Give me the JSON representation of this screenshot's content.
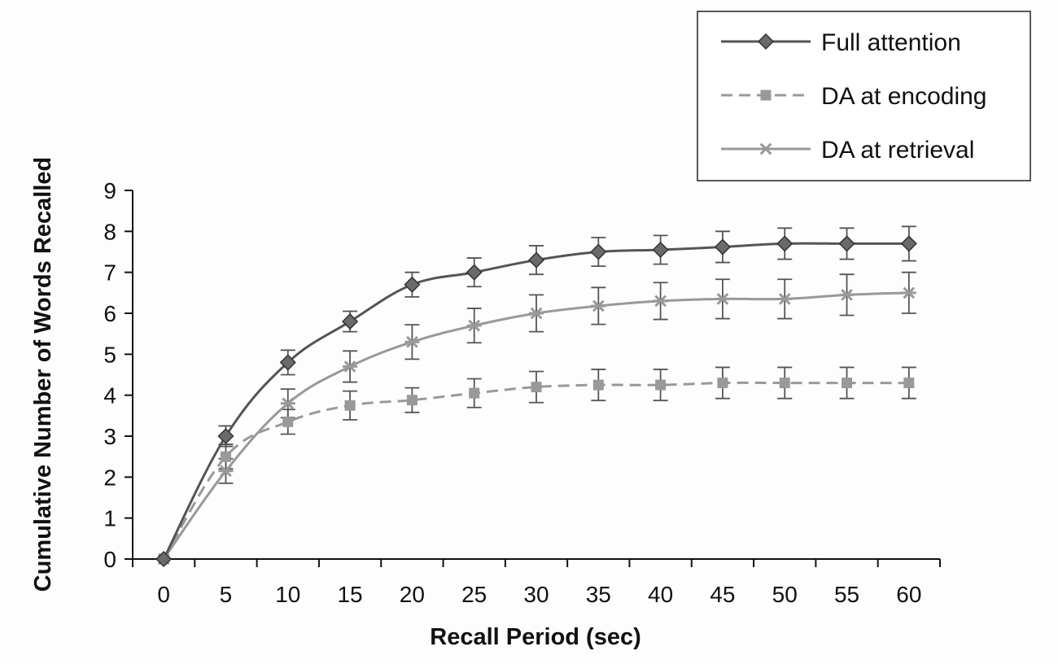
{
  "chart_data": {
    "type": "line",
    "title": "",
    "xlabel": "Recall Period (sec)",
    "ylabel": "Cumulative Number of Words Recalled",
    "x": [
      0,
      5,
      10,
      15,
      20,
      25,
      30,
      35,
      40,
      45,
      50,
      55,
      60
    ],
    "xticks": [
      "0",
      "5",
      "10",
      "15",
      "20",
      "25",
      "30",
      "35",
      "40",
      "45",
      "50",
      "55",
      "60"
    ],
    "yticks": [
      "0",
      "1",
      "2",
      "3",
      "4",
      "5",
      "6",
      "7",
      "8",
      "9"
    ],
    "ylim": [
      0,
      9
    ],
    "grid": false,
    "legend_position": "top-right",
    "series": [
      {
        "name": "Full attention",
        "marker": "diamond",
        "line_style": "solid",
        "color": "#555555",
        "values": [
          0,
          3.0,
          4.8,
          5.8,
          6.7,
          7.0,
          7.3,
          7.5,
          7.55,
          7.62,
          7.7,
          7.7,
          7.7
        ],
        "errors": [
          0,
          0.25,
          0.3,
          0.25,
          0.3,
          0.35,
          0.35,
          0.35,
          0.35,
          0.38,
          0.38,
          0.38,
          0.42
        ]
      },
      {
        "name": "DA at encoding",
        "marker": "square",
        "line_style": "dashed",
        "color": "#999999",
        "values": [
          0,
          2.5,
          3.35,
          3.75,
          3.88,
          4.05,
          4.2,
          4.25,
          4.25,
          4.3,
          4.3,
          4.3,
          4.3
        ],
        "errors": [
          0,
          0.3,
          0.3,
          0.35,
          0.3,
          0.35,
          0.38,
          0.38,
          0.38,
          0.38,
          0.38,
          0.38,
          0.38
        ]
      },
      {
        "name": "DA at retrieval",
        "marker": "asterisk",
        "line_style": "solid",
        "color": "#999999",
        "values": [
          0,
          2.15,
          3.8,
          4.7,
          5.3,
          5.7,
          6.0,
          6.18,
          6.3,
          6.35,
          6.35,
          6.45,
          6.5
        ],
        "errors": [
          0,
          0.3,
          0.35,
          0.38,
          0.42,
          0.42,
          0.45,
          0.45,
          0.45,
          0.48,
          0.48,
          0.5,
          0.5
        ]
      }
    ]
  }
}
